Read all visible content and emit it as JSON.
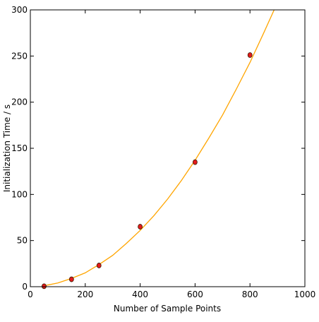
{
  "chart_data": {
    "type": "scatter",
    "xlabel": "Number of Sample Points",
    "ylabel": "Initialization Time / s",
    "xlim": [
      0,
      1000
    ],
    "ylim": [
      0,
      300
    ],
    "xticks": [
      0,
      200,
      400,
      600,
      800,
      1000
    ],
    "yticks": [
      0,
      50,
      100,
      150,
      200,
      250,
      300
    ],
    "series": [
      {
        "mode": "line",
        "color": "#ffa500",
        "x": [
          50,
          100,
          150,
          200,
          250,
          300,
          350,
          400,
          450,
          500,
          550,
          600,
          650,
          700,
          750,
          800,
          850,
          888
        ],
        "values": [
          1,
          4,
          9,
          15,
          24,
          34,
          47,
          61,
          77,
          95,
          115,
          137,
          161,
          186,
          214,
          243,
          275,
          300
        ]
      },
      {
        "mode": "marker",
        "color": "#e31a1c",
        "x": [
          50,
          150,
          250,
          400,
          600,
          800
        ],
        "values": [
          0.5,
          8,
          23,
          65,
          135,
          251
        ]
      }
    ]
  }
}
